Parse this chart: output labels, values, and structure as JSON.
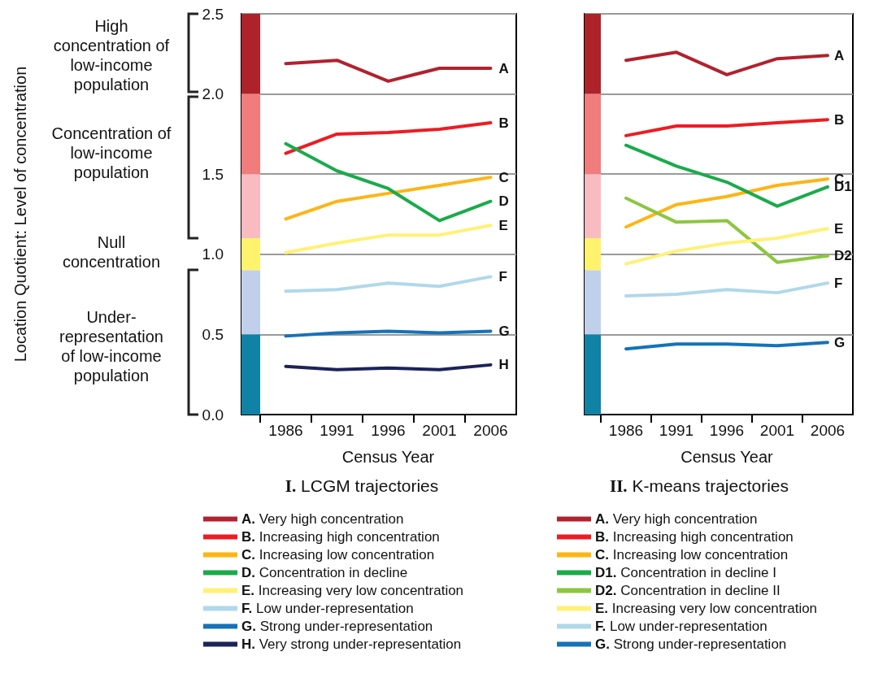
{
  "chart_data": [
    {
      "type": "line",
      "title": "I. LCGM trajectories",
      "xlabel": "Census Year",
      "ylabel": "Location Quotient: Level of concentration",
      "categories": [
        "1986",
        "1991",
        "1996",
        "2001",
        "2006"
      ],
      "series": [
        {
          "name": "A. Very high concentration",
          "color": "#b0222e",
          "values": [
            2.19,
            2.21,
            2.08,
            2.16,
            2.16
          ]
        },
        {
          "name": "B. Increasing high concentration",
          "color": "#ed1c24",
          "values": [
            1.63,
            1.75,
            1.76,
            1.78,
            1.82
          ]
        },
        {
          "name": "C. Increasing low concentration",
          "color": "#fdb515",
          "values": [
            1.22,
            1.33,
            1.38,
            1.43,
            1.48
          ]
        },
        {
          "name": "D. Concentration in decline",
          "color": "#1aab4b",
          "values": [
            1.69,
            1.52,
            1.41,
            1.21,
            1.33
          ]
        },
        {
          "name": "E. Increasing very low concentration",
          "color": "#fff176",
          "values": [
            1.01,
            1.07,
            1.12,
            1.12,
            1.18
          ]
        },
        {
          "name": "F. Low under-representation",
          "color": "#b0d8ea",
          "values": [
            0.77,
            0.78,
            0.82,
            0.8,
            0.86
          ]
        },
        {
          "name": "G. Strong under-representation",
          "color": "#1672b9",
          "values": [
            0.49,
            0.51,
            0.52,
            0.51,
            0.52
          ]
        },
        {
          "name": "H. Very strong under-representation",
          "color": "#1c2359",
          "values": [
            0.3,
            0.28,
            0.29,
            0.28,
            0.31
          ]
        }
      ],
      "ylim": [
        0,
        2.5
      ],
      "yticks": [
        {
          "value": 0,
          "label": "0.0"
        },
        0.5,
        {
          "value": 1,
          "label": "1.0"
        },
        1.5,
        {
          "value": 2,
          "label": "2.0"
        },
        2.5
      ],
      "grid": "y",
      "legend": "bottom",
      "marker": "none",
      "bands": [
        {
          "axis": "y",
          "from": 2.0,
          "to": 2.5,
          "color": "#ae2229"
        },
        {
          "axis": "y",
          "from": 1.5,
          "to": 2.0,
          "color": "#f07c7c"
        },
        {
          "axis": "y",
          "from": 1.1,
          "to": 1.5,
          "color": "#f8bcc0"
        },
        {
          "axis": "y",
          "from": 0.9,
          "to": 1.1,
          "color": "#fff36d"
        },
        {
          "axis": "y",
          "from": 0.5,
          "to": 0.9,
          "color": "#c1d0ea"
        },
        {
          "axis": "y",
          "from": 0,
          "to": 0.5,
          "color": "#0f82a5"
        }
      ],
      "annotations": [
        "High concentration of low-income population",
        "Concentration of low-income population",
        "Null concentration",
        "Under-representation of low-income population",
        {
          "text": "A",
          "x": "2006",
          "y": 2.16
        },
        {
          "text": "B",
          "x": "2006",
          "y": 1.82
        },
        {
          "text": "C",
          "x": "2006",
          "y": 1.48
        },
        {
          "text": "D",
          "x": "2006",
          "y": 1.33
        },
        {
          "text": "E",
          "x": "2006",
          "y": 1.18
        },
        {
          "text": "F",
          "x": "2006",
          "y": 0.86
        },
        {
          "text": "G",
          "x": "2006",
          "y": 0.52
        },
        {
          "text": "H",
          "x": "2006",
          "y": 0.31
        }
      ]
    },
    {
      "type": "line",
      "title": "II. K-means trajectories",
      "xlabel": "Census Year",
      "categories": [
        "1986",
        "1991",
        "1996",
        "2001",
        "2006"
      ],
      "series": [
        {
          "name": "A. Very high concentration",
          "color": "#b0222e",
          "values": [
            2.21,
            2.26,
            2.12,
            2.22,
            2.24
          ]
        },
        {
          "name": "B. Increasing high concentration",
          "color": "#ed1c24",
          "values": [
            1.74,
            1.8,
            1.8,
            1.82,
            1.84
          ]
        },
        {
          "name": "C. Increasing low concentration",
          "color": "#fdb515",
          "values": [
            1.17,
            1.31,
            1.36,
            1.43,
            1.47
          ]
        },
        {
          "name": "D1. Concentration in decline I",
          "color": "#1aab4b",
          "values": [
            1.68,
            1.55,
            1.45,
            1.3,
            1.42
          ]
        },
        {
          "name": "D2. Concentration in decline II",
          "color": "#8dc63f",
          "values": [
            1.35,
            1.2,
            1.21,
            0.95,
            0.99
          ]
        },
        {
          "name": "E. Increasing very low concentration",
          "color": "#fff176",
          "values": [
            0.94,
            1.02,
            1.07,
            1.1,
            1.16
          ]
        },
        {
          "name": "F. Low under-representation",
          "color": "#b0d8ea",
          "values": [
            0.74,
            0.75,
            0.78,
            0.76,
            0.82
          ]
        },
        {
          "name": "G. Strong under-representation",
          "color": "#1672b9",
          "values": [
            0.41,
            0.44,
            0.44,
            0.43,
            0.45
          ]
        }
      ],
      "ylim": [
        0,
        2.5
      ],
      "tick_labels": "x",
      "grid": "y",
      "legend": "bottom",
      "marker": "none",
      "yticks": [
        0,
        0.5,
        1,
        1.5,
        2,
        2.5
      ],
      "bands": [
        {
          "axis": "y",
          "from": 2.0,
          "to": 2.5,
          "color": "#ae2229"
        },
        {
          "axis": "y",
          "from": 1.5,
          "to": 2.0,
          "color": "#f07c7c"
        },
        {
          "axis": "y",
          "from": 1.1,
          "to": 1.5,
          "color": "#f8bcc0"
        },
        {
          "axis": "y",
          "from": 0.9,
          "to": 1.1,
          "color": "#fff36d"
        },
        {
          "axis": "y",
          "from": 0.5,
          "to": 0.9,
          "color": "#c1d0ea"
        },
        {
          "axis": "y",
          "from": 0,
          "to": 0.5,
          "color": "#0f82a5"
        }
      ],
      "annotations": [
        {
          "text": "A",
          "x": "2006",
          "y": 2.24
        },
        {
          "text": "B",
          "x": "2006",
          "y": 1.84
        },
        {
          "text": "C",
          "x": "2006",
          "y": 1.47
        },
        {
          "text": "D1",
          "x": "2006",
          "y": 1.42
        },
        {
          "text": "E",
          "x": "2006",
          "y": 1.16
        },
        {
          "text": "D2",
          "x": "2006",
          "y": 0.99
        },
        {
          "text": "F",
          "x": "2006",
          "y": 0.82
        },
        {
          "text": "G",
          "x": "2006",
          "y": 0.45
        }
      ]
    }
  ]
}
